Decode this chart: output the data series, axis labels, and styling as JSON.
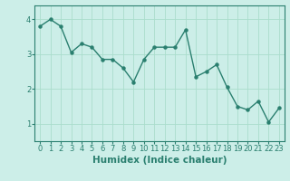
{
  "x": [
    0,
    1,
    2,
    3,
    4,
    5,
    6,
    7,
    8,
    9,
    10,
    11,
    12,
    13,
    14,
    15,
    16,
    17,
    18,
    19,
    20,
    21,
    22,
    23
  ],
  "y": [
    3.8,
    4.0,
    3.8,
    3.05,
    3.3,
    3.2,
    2.85,
    2.85,
    2.6,
    2.2,
    2.85,
    3.2,
    3.2,
    3.2,
    3.7,
    2.35,
    2.5,
    2.7,
    2.05,
    1.5,
    1.4,
    1.65,
    1.05,
    1.45
  ],
  "line_color": "#2a7f6f",
  "marker": "o",
  "marker_size": 2.2,
  "linewidth": 1.0,
  "bg_color": "#cceee8",
  "grid_color": "#aaddcc",
  "xlabel": "Humidex (Indice chaleur)",
  "tick_fontsize": 6.0,
  "xlabel_fontsize": 7.5,
  "ylim": [
    0.5,
    4.4
  ],
  "xlim": [
    -0.5,
    23.5
  ],
  "yticks": [
    1,
    2,
    3,
    4
  ],
  "xticks": [
    0,
    1,
    2,
    3,
    4,
    5,
    6,
    7,
    8,
    9,
    10,
    11,
    12,
    13,
    14,
    15,
    16,
    17,
    18,
    19,
    20,
    21,
    22,
    23
  ]
}
